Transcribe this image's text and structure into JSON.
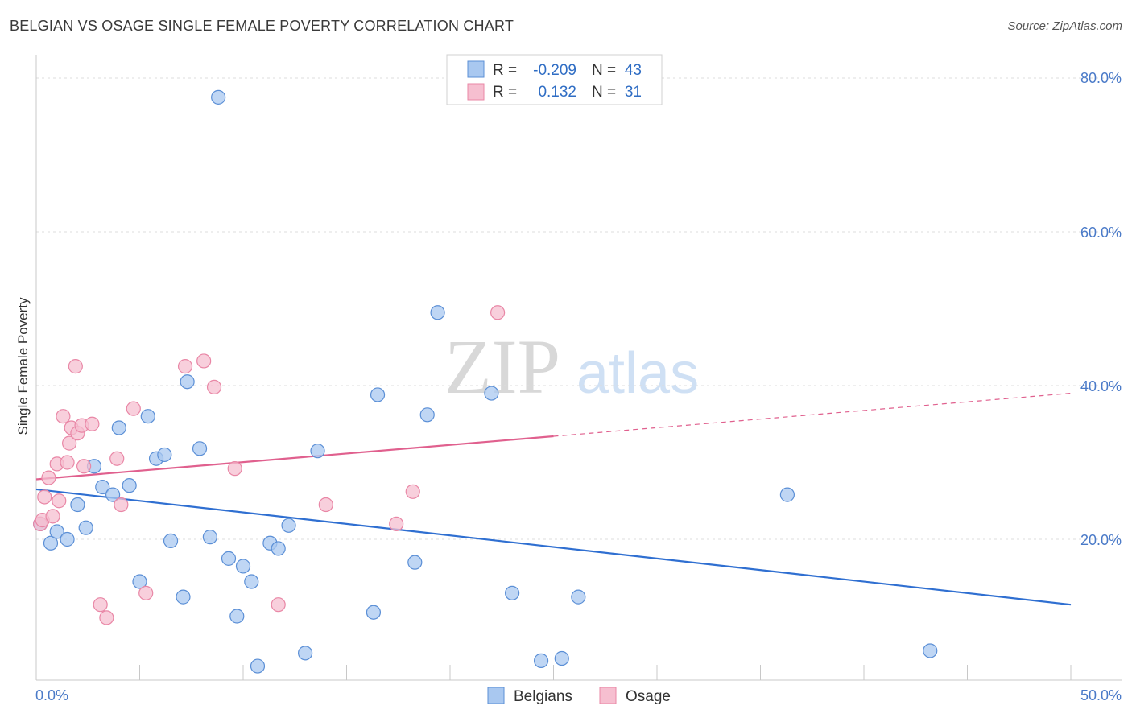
{
  "title": "BELGIAN VS OSAGE SINGLE FEMALE POVERTY CORRELATION CHART",
  "source": "Source: ZipAtlas.com",
  "chart_data": {
    "type": "scatter",
    "xlabel": "",
    "ylabel": "Single Female Poverty",
    "xlim": [
      0,
      50
    ],
    "ylim": [
      0,
      80
    ],
    "x_tick_labels": [
      "0.0%",
      "50.0%"
    ],
    "y_tick_labels": [
      "80.0%",
      "60.0%",
      "40.0%",
      "20.0%"
    ],
    "y_tick_values": [
      80,
      60,
      40,
      20
    ],
    "watermark": [
      "ZIP",
      "atlas"
    ],
    "legend": {
      "rows": [
        {
          "r_label": "R =",
          "r_value": "-0.209",
          "n_label": "N =",
          "n_value": "43"
        },
        {
          "r_label": "R =",
          "r_value": "0.132",
          "n_label": "N =",
          "n_value": "31"
        }
      ]
    },
    "series": [
      {
        "name": "Belgians",
        "color": "#a9c8f0",
        "edge": "#5b8fd6",
        "line_color": "#2f6fd1",
        "trend": {
          "x0": 0,
          "y0": 26.5,
          "x1": 50,
          "y1": 11.5,
          "dashed_from": null
        },
        "points": [
          [
            0.2,
            22.0
          ],
          [
            0.7,
            19.5
          ],
          [
            1.0,
            21.0
          ],
          [
            1.5,
            20.0
          ],
          [
            2.0,
            24.5
          ],
          [
            2.4,
            21.5
          ],
          [
            2.8,
            29.5
          ],
          [
            3.2,
            26.8
          ],
          [
            3.7,
            25.8
          ],
          [
            4.0,
            34.5
          ],
          [
            4.5,
            27.0
          ],
          [
            5.0,
            14.5
          ],
          [
            5.4,
            36.0
          ],
          [
            5.8,
            30.5
          ],
          [
            6.2,
            31.0
          ],
          [
            6.5,
            19.8
          ],
          [
            7.1,
            12.5
          ],
          [
            7.3,
            40.5
          ],
          [
            7.9,
            31.8
          ],
          [
            8.4,
            20.3
          ],
          [
            8.8,
            77.5
          ],
          [
            9.3,
            17.5
          ],
          [
            9.7,
            10.0
          ],
          [
            10.0,
            16.5
          ],
          [
            10.4,
            14.5
          ],
          [
            10.7,
            3.5
          ],
          [
            11.3,
            19.5
          ],
          [
            11.7,
            18.8
          ],
          [
            12.2,
            21.8
          ],
          [
            13.0,
            5.2
          ],
          [
            13.6,
            31.5
          ],
          [
            16.3,
            10.5
          ],
          [
            16.5,
            38.8
          ],
          [
            18.3,
            17.0
          ],
          [
            18.9,
            36.2
          ],
          [
            19.4,
            49.5
          ],
          [
            22.0,
            39.0
          ],
          [
            23.0,
            13.0
          ],
          [
            24.4,
            4.2
          ],
          [
            25.4,
            4.5
          ],
          [
            26.2,
            12.5
          ],
          [
            36.3,
            25.8
          ],
          [
            43.2,
            5.5
          ]
        ]
      },
      {
        "name": "Osage",
        "color": "#f6bfd0",
        "edge": "#e987a6",
        "line_color": "#e0608e",
        "trend": {
          "x0": 0,
          "y0": 27.8,
          "x1": 50,
          "y1": 39.0,
          "dashed_from": 25
        },
        "points": [
          [
            0.2,
            22.0
          ],
          [
            0.3,
            22.5
          ],
          [
            0.4,
            25.5
          ],
          [
            0.6,
            28.0
          ],
          [
            0.8,
            23.0
          ],
          [
            1.0,
            29.8
          ],
          [
            1.1,
            25.0
          ],
          [
            1.3,
            36.0
          ],
          [
            1.5,
            30.0
          ],
          [
            1.6,
            32.5
          ],
          [
            1.7,
            34.5
          ],
          [
            1.9,
            42.5
          ],
          [
            2.0,
            33.8
          ],
          [
            2.2,
            34.8
          ],
          [
            2.3,
            29.5
          ],
          [
            2.7,
            35.0
          ],
          [
            3.1,
            11.5
          ],
          [
            3.4,
            9.8
          ],
          [
            3.9,
            30.5
          ],
          [
            4.1,
            24.5
          ],
          [
            4.7,
            37.0
          ],
          [
            5.3,
            13.0
          ],
          [
            7.2,
            42.5
          ],
          [
            8.1,
            43.2
          ],
          [
            8.6,
            39.8
          ],
          [
            9.6,
            29.2
          ],
          [
            11.7,
            11.5
          ],
          [
            14.0,
            24.5
          ],
          [
            17.4,
            22.0
          ],
          [
            18.2,
            26.2
          ],
          [
            22.3,
            49.5
          ]
        ]
      }
    ]
  }
}
